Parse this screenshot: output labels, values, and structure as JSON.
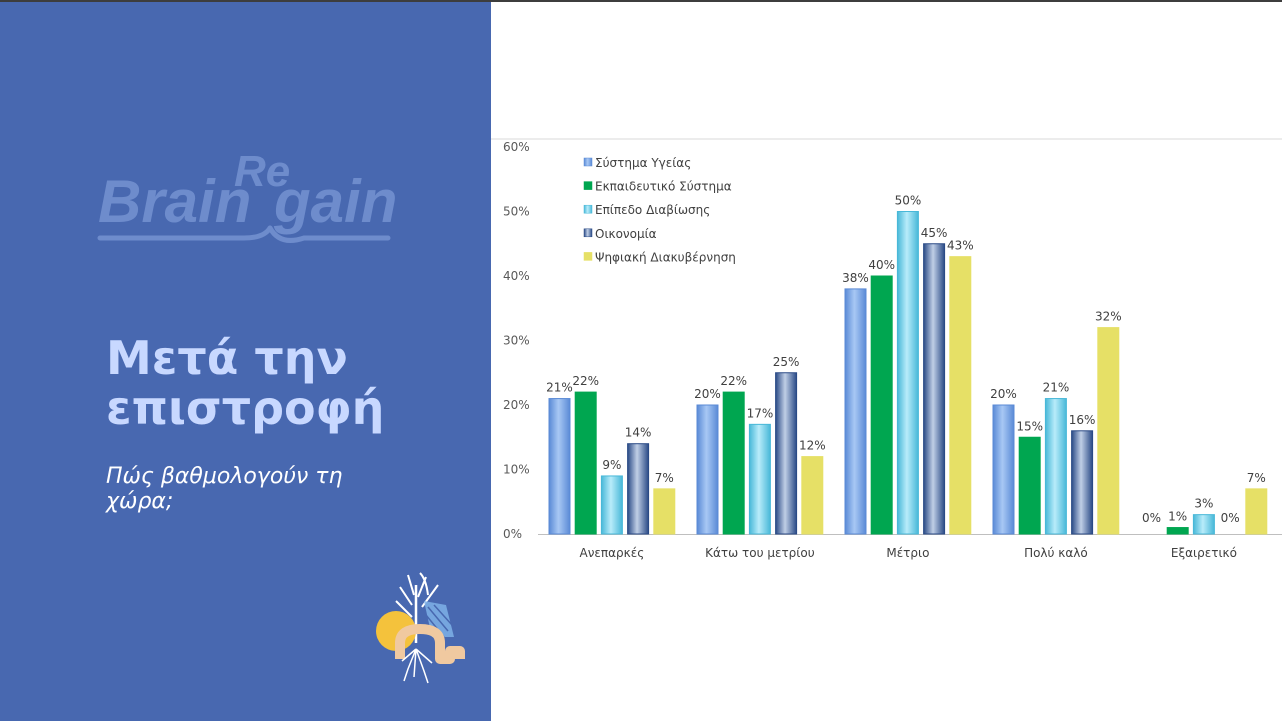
{
  "branding": {
    "logo_text_1": "Brain",
    "logo_text_2": "Re",
    "logo_text_3": "gain"
  },
  "slide": {
    "title": "Μετά την επιστροφή",
    "subtitle": "Πώς βαθμολογούν τη χώρα;"
  },
  "colors": {
    "panel_bg": "#4868b0",
    "title": "#c8d8ff",
    "logo": "#6e8ccc"
  },
  "icons": {
    "emblem": "plant-sun-arch-icon"
  },
  "chart_data": {
    "type": "bar",
    "categories": [
      "Ανεπαρκές",
      "Κάτω του μετρίου",
      "Μέτριο",
      "Πολύ καλό",
      "Εξαιρετικό"
    ],
    "series": [
      {
        "name": "Σύστημα Υγείας",
        "values": [
          21,
          20,
          38,
          20,
          0
        ],
        "labels": [
          "21%",
          "20%",
          "38%",
          "20%",
          "0%"
        ],
        "color": "#5a8ad6",
        "color_light": "#a8c8f4"
      },
      {
        "name": "Εκπαιδευτικό Σύστημα",
        "values": [
          22,
          22,
          40,
          15,
          1
        ],
        "labels": [
          "22%",
          "22%",
          "40%",
          "15%",
          "1%"
        ],
        "color": "#00a650",
        "color_light": "#00a650"
      },
      {
        "name": "Επίπεδο Διαβίωσης",
        "values": [
          9,
          17,
          50,
          21,
          3
        ],
        "labels": [
          "9%",
          "17%",
          "50%",
          "21%",
          "3%"
        ],
        "color": "#48b8d8",
        "color_light": "#b8ecfa"
      },
      {
        "name": "Οικονομία",
        "values": [
          14,
          25,
          45,
          16,
          0
        ],
        "labels": [
          "14%",
          "25%",
          "45%",
          "16%",
          "0%"
        ],
        "color": "#2a4a86",
        "color_light": "#c0cfe6"
      },
      {
        "name": "Ψηφιακή Διακυβέρνηση",
        "values": [
          7,
          12,
          43,
          32,
          7
        ],
        "labels": [
          "7%",
          "12%",
          "43%",
          "32%",
          "7%"
        ],
        "color": "#e6e066",
        "color_light": "#e6e066"
      }
    ],
    "yticks": [
      "0%",
      "10%",
      "20%",
      "30%",
      "40%",
      "50%",
      "60%"
    ],
    "ylim": [
      0,
      60
    ],
    "legend_position": "top-left",
    "grid": false
  }
}
